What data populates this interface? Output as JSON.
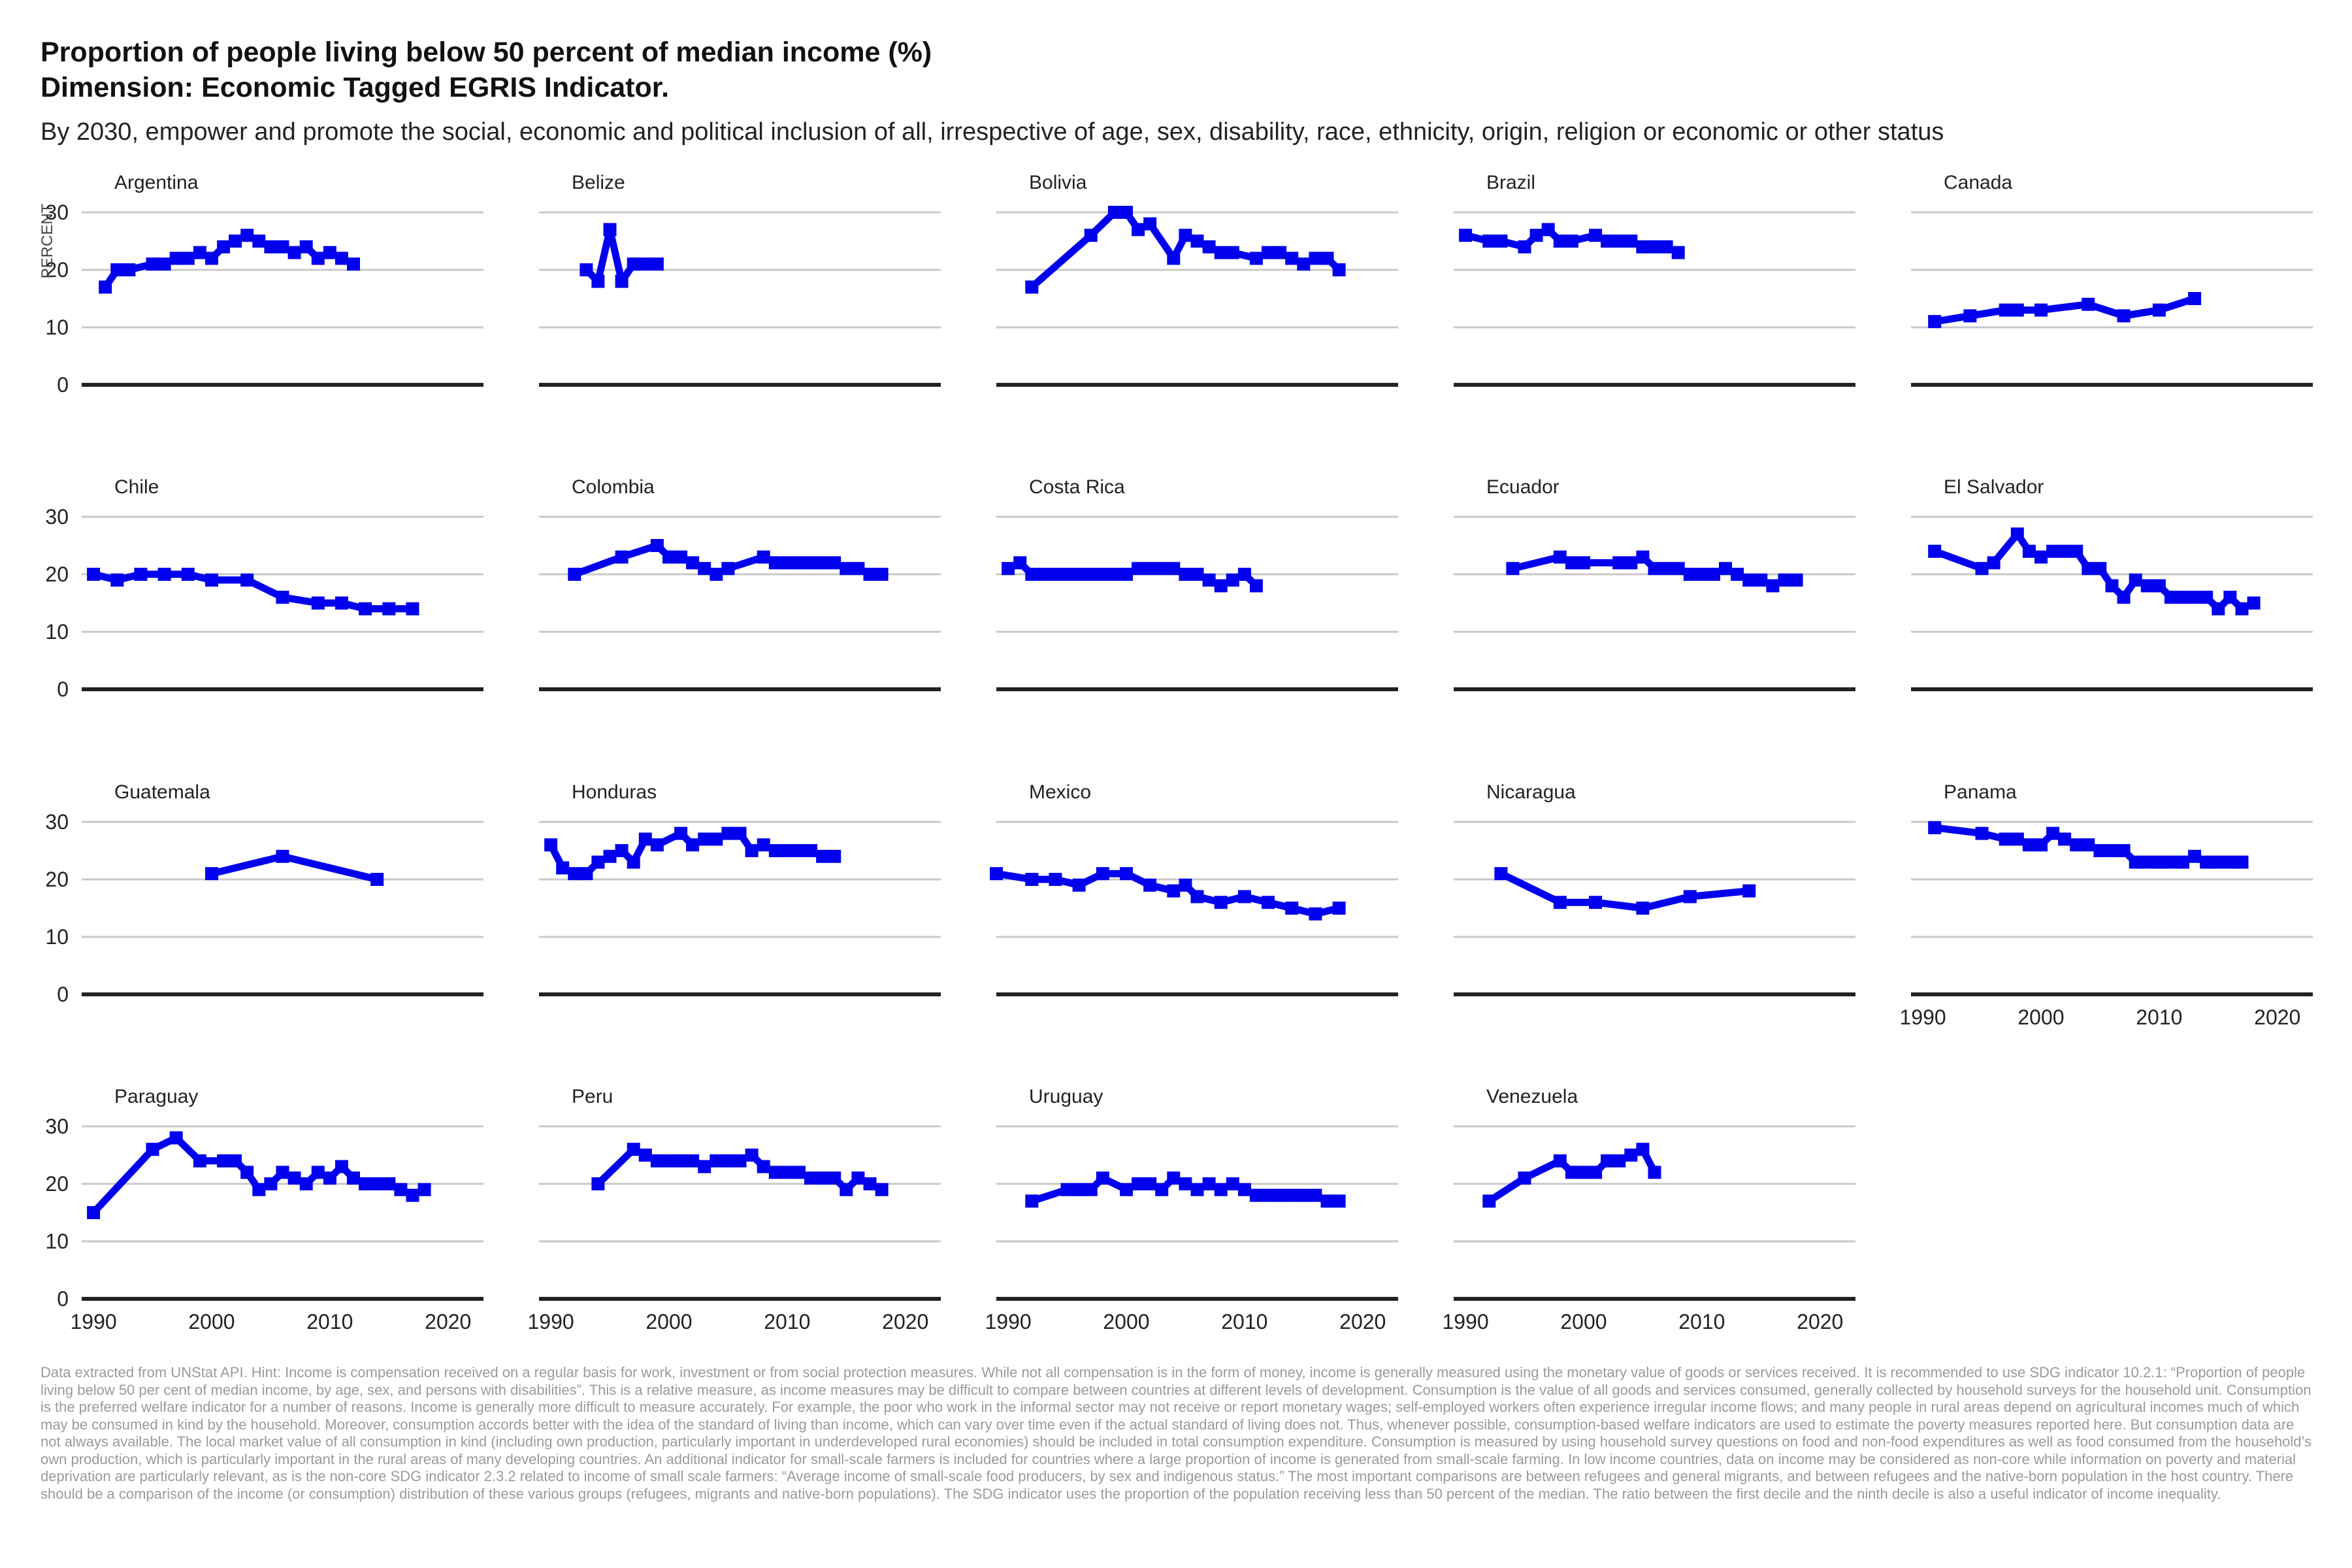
{
  "title_line1": "Proportion of people living below 50 percent of median income (%)",
  "title_line2": "Dimension: Economic Tagged EGRIS Indicator.",
  "subtitle": "By 2030, empower and promote the social, economic and political inclusion of all, irrespective of age, sex, disability, race, ethnicity, origin, religion or economic or other status",
  "caption": "Data extracted from UNStat API. Hint: Income is compensation received on a regular basis for work, investment or from social protection measures. While not all compensation is in the form of money, income is generally measured using the monetary value of goods or services received. It is recommended to use SDG indicator 10.2.1: “Proportion of people living below 50 per cent of median income, by age, sex, and persons with disabilities”. This is a relative measure, as income measures may be difficult to compare between countries at different levels of development. Consumption is the value of all goods and services consumed, generally collected by household surveys for the household unit. Consumption is the preferred welfare indicator for a number of reasons. Income is generally more difficult to measure accurately. For example, the poor who work in the informal sector may not receive or report monetary wages; self-employed workers often experience irregular income flows; and many people in rural areas depend on agricultural incomes much of which may be consumed in kind by the household. Moreover, consumption accords better with the idea of the standard of living than income, which can vary over time even if the actual standard of living does not. Thus, whenever possible, consumption-based welfare indicators are used to estimate the poverty measures reported here. But consumption data are not always available. The local market value of all consumption in kind (including own production, particularly important in underdeveloped rural economies) should be included in total consumption expenditure. Consumption is measured by using household survey questions on food and non-food expenditures as well as food consumed from the household’s own production, which is particularly important in the rural areas of many developing countries. An additional indicator for small-scale farmers is included for countries where a large proportion of income is generated from small-scale farming. In low income countries, data on income may be considered as non-core while information on poverty and material deprivation are particularly relevant, as is the non-core SDG indicator 2.3.2 related to income of small scale farmers: “Average income of small-scale food producers, by sex and indigenous status.” The most important comparisons are between refugees and general migrants, and between refugees and the native-born population in the host country. There should be a comparison of the income (or consumption) distribution of these various groups (refugees, migrants and native-born populations). The SDG indicator uses the proportion of the population receiving less than 50 percent of the median. The ratio between the first decile and the ninth decile is also a useful indicator of income inequality.",
  "chart_data": {
    "type": "line",
    "title": "Proportion of people living below 50 percent of median income (%)",
    "subtitle": "By 2030, empower and promote the social, economic and political inclusion of all, irrespective of age, sex, disability, race, ethnicity, origin, religion or economic or other status",
    "ylabel": "PERCENT",
    "xlabel": "",
    "xlim": [
      1989,
      2023
    ],
    "ylim": [
      0,
      32
    ],
    "x_ticks": [
      1990,
      2000,
      2010,
      2020
    ],
    "y_ticks": [
      0,
      10,
      20,
      30
    ],
    "grid": true,
    "line_color": "#0000ee",
    "zero_line_color": "#222222",
    "series": [
      {
        "name": "Argentina",
        "x": [
          1991,
          1992,
          1993,
          1995,
          1996,
          1997,
          1998,
          1999,
          2000,
          2001,
          2002,
          2003,
          2004,
          2005,
          2006,
          2007,
          2008,
          2009,
          2010,
          2011,
          2012
        ],
        "values": [
          17,
          20,
          20,
          21,
          21,
          22,
          22,
          23,
          22,
          24,
          25,
          26,
          25,
          24,
          24,
          23,
          24,
          22,
          23,
          22,
          21
        ]
      },
      {
        "name": "Belize",
        "x": [
          1993,
          1994,
          1995,
          1996,
          1997,
          1998,
          1999
        ],
        "values": [
          20,
          18,
          27,
          18,
          21,
          21,
          21
        ]
      },
      {
        "name": "Bolivia",
        "x": [
          1992,
          1997,
          1999,
          2000,
          2001,
          2002,
          2004,
          2005,
          2006,
          2007,
          2008,
          2009,
          2011,
          2012,
          2013,
          2014,
          2015,
          2016,
          2017,
          2018
        ],
        "values": [
          17,
          26,
          30,
          30,
          27,
          28,
          22,
          26,
          25,
          24,
          23,
          23,
          22,
          23,
          23,
          22,
          21,
          22,
          22,
          20
        ]
      },
      {
        "name": "Brazil",
        "x": [
          1990,
          1992,
          1993,
          1995,
          1996,
          1997,
          1998,
          1999,
          2001,
          2002,
          2003,
          2004,
          2005,
          2006,
          2007,
          2008
        ],
        "values": [
          26,
          25,
          25,
          24,
          26,
          27,
          25,
          25,
          26,
          25,
          25,
          25,
          24,
          24,
          24,
          23
        ]
      },
      {
        "name": "Canada",
        "x": [
          1991,
          1994,
          1997,
          1998,
          2000,
          2004,
          2007,
          2010,
          2013
        ],
        "values": [
          11,
          12,
          13,
          13,
          13,
          14,
          12,
          13,
          15
        ]
      },
      {
        "name": "Chile",
        "x": [
          1990,
          1992,
          1994,
          1996,
          1998,
          2000,
          2003,
          2006,
          2009,
          2011,
          2013,
          2015,
          2017
        ],
        "values": [
          20,
          19,
          20,
          20,
          20,
          19,
          19,
          16,
          15,
          15,
          14,
          14,
          14
        ]
      },
      {
        "name": "Colombia",
        "x": [
          1992,
          1996,
          1999,
          2000,
          2001,
          2002,
          2003,
          2004,
          2005,
          2008,
          2009,
          2010,
          2011,
          2012,
          2013,
          2014,
          2015,
          2016,
          2017,
          2018
        ],
        "values": [
          20,
          23,
          25,
          23,
          23,
          22,
          21,
          20,
          21,
          23,
          22,
          22,
          22,
          22,
          22,
          22,
          21,
          21,
          20,
          20
        ]
      },
      {
        "name": "Costa Rica",
        "x": [
          1990,
          1991,
          1992,
          1993,
          1994,
          1995,
          1996,
          1997,
          1998,
          1999,
          2000,
          2001,
          2002,
          2003,
          2004,
          2005,
          2006,
          2007,
          2008,
          2009,
          2010,
          2011
        ],
        "values": [
          21,
          22,
          20,
          20,
          20,
          20,
          20,
          20,
          20,
          20,
          20,
          21,
          21,
          21,
          21,
          20,
          20,
          19,
          18,
          19,
          20,
          18
        ]
      },
      {
        "name": "Ecuador",
        "x": [
          1994,
          1998,
          1999,
          2000,
          2003,
          2004,
          2005,
          2006,
          2007,
          2008,
          2009,
          2010,
          2011,
          2012,
          2013,
          2014,
          2015,
          2016,
          2017,
          2018
        ],
        "values": [
          21,
          23,
          22,
          22,
          22,
          22,
          23,
          21,
          21,
          21,
          20,
          20,
          20,
          21,
          20,
          19,
          19,
          18,
          19,
          19
        ]
      },
      {
        "name": "El Salvador",
        "x": [
          1991,
          1995,
          1996,
          1998,
          1999,
          2000,
          2001,
          2002,
          2003,
          2004,
          2005,
          2006,
          2007,
          2008,
          2009,
          2010,
          2011,
          2012,
          2013,
          2014,
          2015,
          2016,
          2017,
          2018
        ],
        "values": [
          24,
          21,
          22,
          27,
          24,
          23,
          24,
          24,
          24,
          21,
          21,
          18,
          16,
          19,
          18,
          18,
          16,
          16,
          16,
          16,
          14,
          16,
          14,
          15
        ]
      },
      {
        "name": "Guatemala",
        "x": [
          2000,
          2006,
          2014
        ],
        "values": [
          21,
          24,
          20
        ]
      },
      {
        "name": "Honduras",
        "x": [
          1990,
          1991,
          1992,
          1993,
          1994,
          1995,
          1996,
          1997,
          1998,
          1999,
          2001,
          2002,
          2003,
          2004,
          2005,
          2006,
          2007,
          2008,
          2009,
          2010,
          2011,
          2012,
          2013,
          2014
        ],
        "values": [
          26,
          22,
          21,
          21,
          23,
          24,
          25,
          23,
          27,
          26,
          28,
          26,
          27,
          27,
          28,
          28,
          25,
          26,
          25,
          25,
          25,
          25,
          24,
          24
        ]
      },
      {
        "name": "Mexico",
        "x": [
          1989,
          1992,
          1994,
          1996,
          1998,
          2000,
          2002,
          2004,
          2005,
          2006,
          2008,
          2010,
          2012,
          2014,
          2016,
          2018
        ],
        "values": [
          21,
          20,
          20,
          19,
          21,
          21,
          19,
          18,
          19,
          17,
          16,
          17,
          16,
          15,
          14,
          15
        ]
      },
      {
        "name": "Nicaragua",
        "x": [
          1993,
          1998,
          2001,
          2005,
          2009,
          2014
        ],
        "values": [
          21,
          16,
          16,
          15,
          17,
          18
        ]
      },
      {
        "name": "Panama",
        "x": [
          1991,
          1995,
          1997,
          1998,
          1999,
          2000,
          2001,
          2002,
          2003,
          2004,
          2005,
          2006,
          2007,
          2008,
          2009,
          2010,
          2011,
          2012,
          2013,
          2014,
          2015,
          2016,
          2017
        ],
        "values": [
          29,
          28,
          27,
          27,
          26,
          26,
          28,
          27,
          26,
          26,
          25,
          25,
          25,
          23,
          23,
          23,
          23,
          23,
          24,
          23,
          23,
          23,
          23
        ]
      },
      {
        "name": "Paraguay",
        "x": [
          1990,
          1995,
          1997,
          1999,
          2001,
          2002,
          2003,
          2004,
          2005,
          2006,
          2007,
          2008,
          2009,
          2010,
          2011,
          2012,
          2013,
          2014,
          2015,
          2016,
          2017,
          2018
        ],
        "values": [
          15,
          26,
          28,
          24,
          24,
          24,
          22,
          19,
          20,
          22,
          21,
          20,
          22,
          21,
          23,
          21,
          20,
          20,
          20,
          19,
          18,
          19
        ]
      },
      {
        "name": "Peru",
        "x": [
          1994,
          1997,
          1998,
          1999,
          2000,
          2001,
          2002,
          2003,
          2004,
          2005,
          2006,
          2007,
          2008,
          2009,
          2010,
          2011,
          2012,
          2013,
          2014,
          2015,
          2016,
          2017,
          2018
        ],
        "values": [
          20,
          26,
          25,
          24,
          24,
          24,
          24,
          23,
          24,
          24,
          24,
          25,
          23,
          22,
          22,
          22,
          21,
          21,
          21,
          19,
          21,
          20,
          19
        ]
      },
      {
        "name": "Uruguay",
        "x": [
          1992,
          1995,
          1996,
          1997,
          1998,
          2000,
          2001,
          2002,
          2003,
          2004,
          2005,
          2006,
          2007,
          2008,
          2009,
          2010,
          2011,
          2012,
          2013,
          2014,
          2015,
          2016,
          2017,
          2018
        ],
        "values": [
          17,
          19,
          19,
          19,
          21,
          19,
          20,
          20,
          19,
          21,
          20,
          19,
          20,
          19,
          20,
          19,
          18,
          18,
          18,
          18,
          18,
          18,
          17,
          17
        ]
      },
      {
        "name": "Venezuela",
        "x": [
          1992,
          1995,
          1998,
          1999,
          2000,
          2001,
          2002,
          2003,
          2004,
          2005,
          2006
        ],
        "values": [
          17,
          21,
          24,
          22,
          22,
          22,
          24,
          24,
          25,
          26,
          22
        ]
      }
    ]
  }
}
